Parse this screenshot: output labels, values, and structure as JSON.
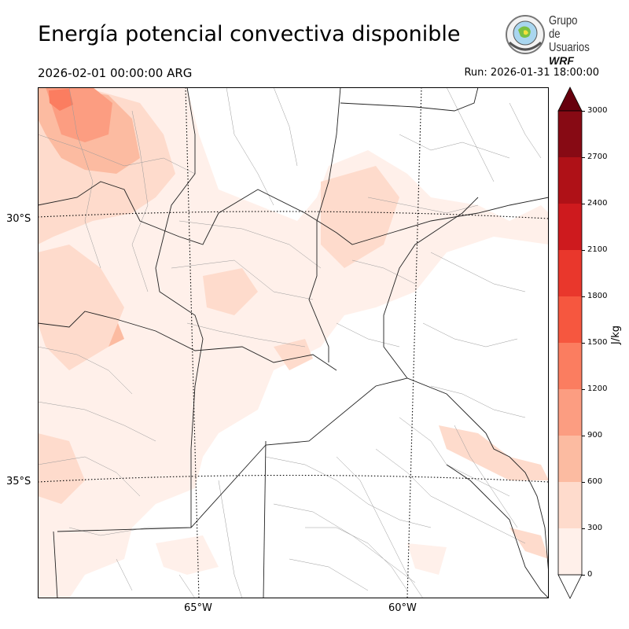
{
  "title": "Energía potencial convectiva disponible",
  "valid_time": "2026-02-01 00:00:00 ARG",
  "run_time": "Run: 2026-01-31 18:00:00",
  "logo": {
    "line1": "Grupo de",
    "line2": "Usuarios",
    "line3": "WRF",
    "icon": "wrf-globe-emblem-icon"
  },
  "map": {
    "lat_labels": [
      "30°S",
      "35°S"
    ],
    "lon_labels": [
      "65°W",
      "60°W"
    ],
    "field": "CAPE shaded",
    "borders": "provincial and departmental boundaries"
  },
  "colorbar": {
    "unit": "J/kg",
    "ticks": [
      "0",
      "300",
      "600",
      "900",
      "1200",
      "1500",
      "1800",
      "2100",
      "2400",
      "2700",
      "3000"
    ],
    "colors": [
      "#fff0ea",
      "#fedbcc",
      "#fcbba1",
      "#fc9d81",
      "#fb7d60",
      "#f6573f",
      "#e9372c",
      "#ce1a1e",
      "#af1117",
      "#870a14",
      "#67000d"
    ]
  }
}
